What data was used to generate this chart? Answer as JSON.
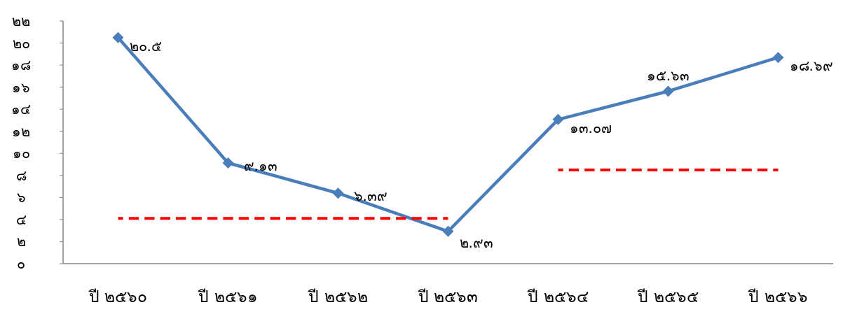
{
  "chart_data": {
    "type": "line",
    "categories": [
      "ปี ๒๕๖๐",
      "ปี ๒๕๖๑",
      "ปี ๒๕๖๒",
      "ปี ๒๕๖๓",
      "ปี ๒๕๖๔",
      "ปี ๒๕๖๕",
      "ปี ๒๕๖๖"
    ],
    "series": [
      {
        "color": "#4a7ebb",
        "marker": "diamond",
        "line_style": "solid",
        "values": [
          20.5,
          9.13,
          6.39,
          2.93,
          13.07,
          15.63,
          18.69
        ],
        "value_labels": [
          "๒๐.๕",
          "๙.๑๓",
          "๖.๓๙",
          "๒.๙๓",
          "๑๓.๐๗",
          "๑๕.๖๓",
          "๑๘.๖๙"
        ]
      },
      {
        "color": "#ff0000",
        "marker": "none",
        "line_style": "dashed",
        "values": [
          4.1,
          4.1,
          4.1,
          4.1,
          null,
          null,
          null
        ]
      },
      {
        "color": "#ff0000",
        "marker": "none",
        "line_style": "dashed",
        "values": [
          null,
          null,
          null,
          null,
          8.5,
          8.5,
          8.5
        ]
      }
    ],
    "ylim": [
      0,
      22
    ],
    "yticks": [
      {
        "value": 0,
        "label": "๐"
      },
      {
        "value": 2,
        "label": "๒"
      },
      {
        "value": 4,
        "label": "๔"
      },
      {
        "value": 6,
        "label": "๖"
      },
      {
        "value": 8,
        "label": "๘"
      },
      {
        "value": 10,
        "label": "๑๐"
      },
      {
        "value": 12,
        "label": "๑๒"
      },
      {
        "value": 14,
        "label": "๑๔"
      },
      {
        "value": 16,
        "label": "๑๖"
      },
      {
        "value": 18,
        "label": "๑๘"
      },
      {
        "value": 20,
        "label": "๒๐"
      },
      {
        "value": 22,
        "label": "๒๒"
      }
    ],
    "grid": false
  }
}
